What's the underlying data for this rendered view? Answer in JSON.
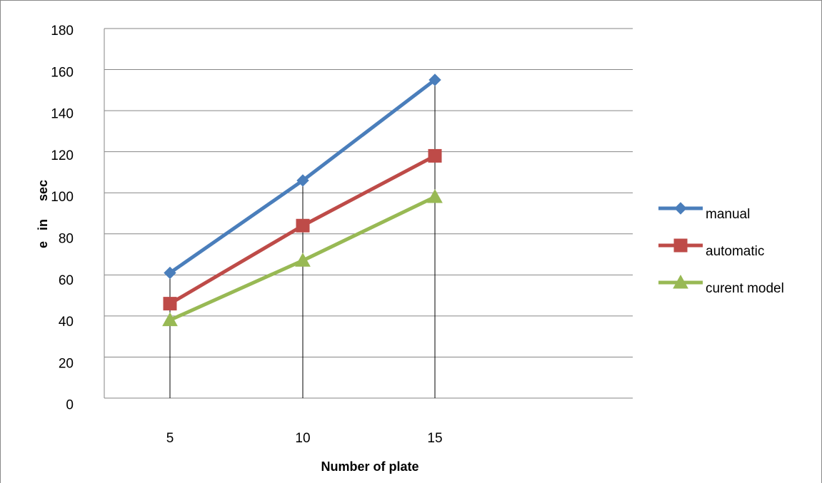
{
  "chart_data": {
    "type": "line",
    "categories": [
      "5",
      "10",
      "15"
    ],
    "xlabel": "Number of plate",
    "ylabel": "e   in     sec",
    "yticks": [
      0,
      20,
      40,
      60,
      80,
      100,
      120,
      140,
      160,
      180
    ],
    "ylim": [
      0,
      180
    ],
    "grid": "horizontal",
    "legend_position": "right",
    "series": [
      {
        "name": "manual",
        "values": [
          61,
          106,
          155
        ],
        "color": "#4a7ebb",
        "marker": "diamond"
      },
      {
        "name": "automatic",
        "values": [
          46,
          84,
          118
        ],
        "color": "#be4b48",
        "marker": "square"
      },
      {
        "name": "curent model",
        "values": [
          38,
          67,
          98
        ],
        "color": "#98b954",
        "marker": "triangle"
      }
    ]
  }
}
